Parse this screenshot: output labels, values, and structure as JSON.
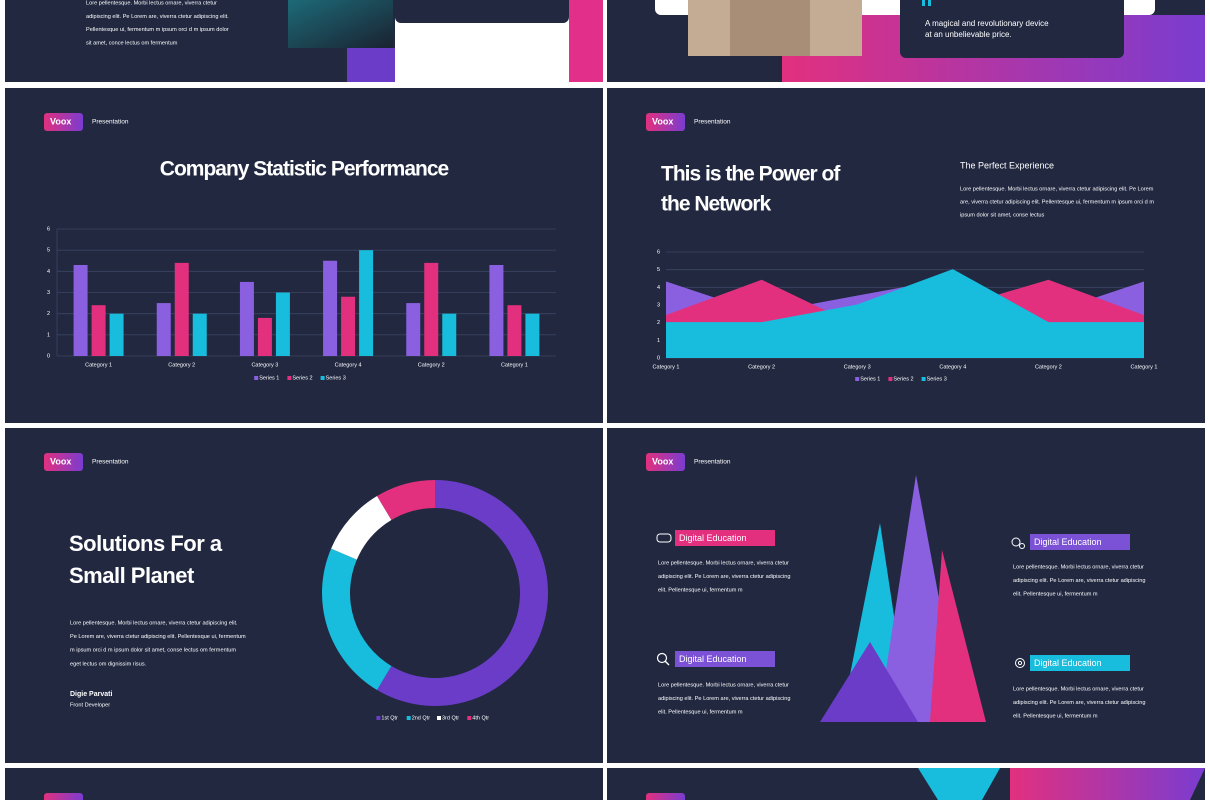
{
  "slides": [
    {
      "paragraph": [
        "Lore pellentesque. Morbi lectus ornare, viverra ctetur",
        "adipiscing elit. Pe Lorem are, viverra ctetur adipiscing elit.",
        "Pellentesque ui, fermentum m ipsum orci d m ipsum dolor",
        "sit amet, conce lectus om fermentum"
      ]
    },
    {
      "quote": [
        "A magical and revolutionary device",
        "at an unbelievable price."
      ]
    },
    {
      "brand": "Voox",
      "label": "Presentation",
      "chart_data": {
        "type": "bar",
        "title": "Company Statistic Performance",
        "categories": [
          "Category 1",
          "Category 2",
          "Category 3",
          "Category 4",
          "Category 2",
          "Category 1"
        ],
        "series": [
          {
            "name": "Series 1",
            "color": "#8a60e0",
            "values": [
              4.3,
              2.5,
              3.5,
              4.5,
              2.5,
              4.3
            ]
          },
          {
            "name": "Series 2",
            "color": "#e2307f",
            "values": [
              2.4,
              4.4,
              1.8,
              2.8,
              4.4,
              2.4
            ]
          },
          {
            "name": "Series 3",
            "color": "#18bcdc",
            "values": [
              2,
              2,
              3,
              5,
              2,
              2
            ]
          }
        ],
        "ylim": [
          0,
          6
        ],
        "yticks": [
          0,
          1,
          2,
          3,
          4,
          5,
          6
        ],
        "grid": true,
        "legend": "bottom"
      }
    },
    {
      "brand": "Voox",
      "label": "Presentation",
      "title": [
        "This is the Power of",
        "the Network"
      ],
      "subtitle": "The Perfect Experience",
      "paragraph": [
        "Lore pellentesque. Morbi lectus ornare, viverra ctetur adipiscing elit. Pe Lorem",
        "are, viverra ctetur adipiscing elit. Pellentesque ui, fermentum m ipsum orci d m",
        "ipsum dolor sit amet, conse lectus"
      ],
      "chart_data": {
        "type": "area",
        "categories": [
          "Category 1",
          "Category 2",
          "Category 3",
          "Category 4",
          "Category 2",
          "Category 1"
        ],
        "series": [
          {
            "name": "Series 1",
            "color": "#8a60e0",
            "values": [
              4.3,
              2.5,
              3.5,
              4.5,
              2.5,
              4.3
            ]
          },
          {
            "name": "Series 2",
            "color": "#e2307f",
            "values": [
              2.4,
              4.4,
              1.8,
              2.8,
              4.4,
              2.4
            ]
          },
          {
            "name": "Series 3",
            "color": "#18bcdc",
            "values": [
              2,
              2,
              3,
              5,
              2,
              2
            ]
          }
        ],
        "ylim": [
          0,
          6
        ],
        "yticks": [
          0,
          1,
          2,
          3,
          4,
          5,
          6
        ],
        "grid": true,
        "legend": "bottom"
      }
    },
    {
      "brand": "Voox",
      "label": "Presentation",
      "title": [
        "Solutions For a",
        "Small Planet"
      ],
      "paragraph": [
        "Lore pellentesque. Morbi lectus ornare, viverra ctetur adipiscing elit.",
        "Pe Lorem are, viverra ctetur adipiscing elit. Pellentesque ui, fermentum",
        "m ipsum orci d m ipsum dolor sit amet, conse lectus om fermentum",
        "eget lectus om dignissim risus."
      ],
      "author": "Digie Parvati",
      "role": "Front Developer",
      "chart_data": {
        "type": "donut",
        "categories": [
          "1st Qtr",
          "2nd Qtr",
          "3rd Qtr",
          "4th Qtr"
        ],
        "values": [
          8.2,
          3.2,
          1.4,
          1.2
        ],
        "colors": [
          "#6a3cc8",
          "#18bcdc",
          "#ffffff",
          "#e2307f"
        ],
        "legend": "bottom"
      }
    },
    {
      "brand": "Voox",
      "label": "Presentation",
      "items": [
        {
          "label": "Digital Education",
          "paragraph": [
            "Lore pellentesque. Morbi lectus ornare, viverra ctetur",
            "adipiscing elit. Pe Lorem are, viverra ctetur adipiscing",
            "elit. Pellentesque ui, fermentum m"
          ]
        },
        {
          "label": "Digital Education",
          "paragraph": [
            "Lore pellentesque. Morbi lectus ornare, viverra ctetur",
            "adipiscing elit. Pe Lorem are, viverra ctetur adipiscing",
            "elit. Pellentesque ui, fermentum m"
          ]
        },
        {
          "label": "Digital Education",
          "paragraph": [
            "Lore pellentesque. Morbi lectus ornare, viverra ctetur",
            "adipiscing elit. Pe Lorem are, viverra ctetur adipiscing",
            "elit. Pellentesque ui, fermentum m"
          ]
        },
        {
          "label": "Digital Education",
          "paragraph": [
            "Lore pellentesque. Morbi lectus ornare, viverra ctetur",
            "adipiscing elit. Pe Lorem are, viverra ctetur adipiscing",
            "elit. Pellentesque ui, fermentum m"
          ]
        }
      ]
    }
  ]
}
